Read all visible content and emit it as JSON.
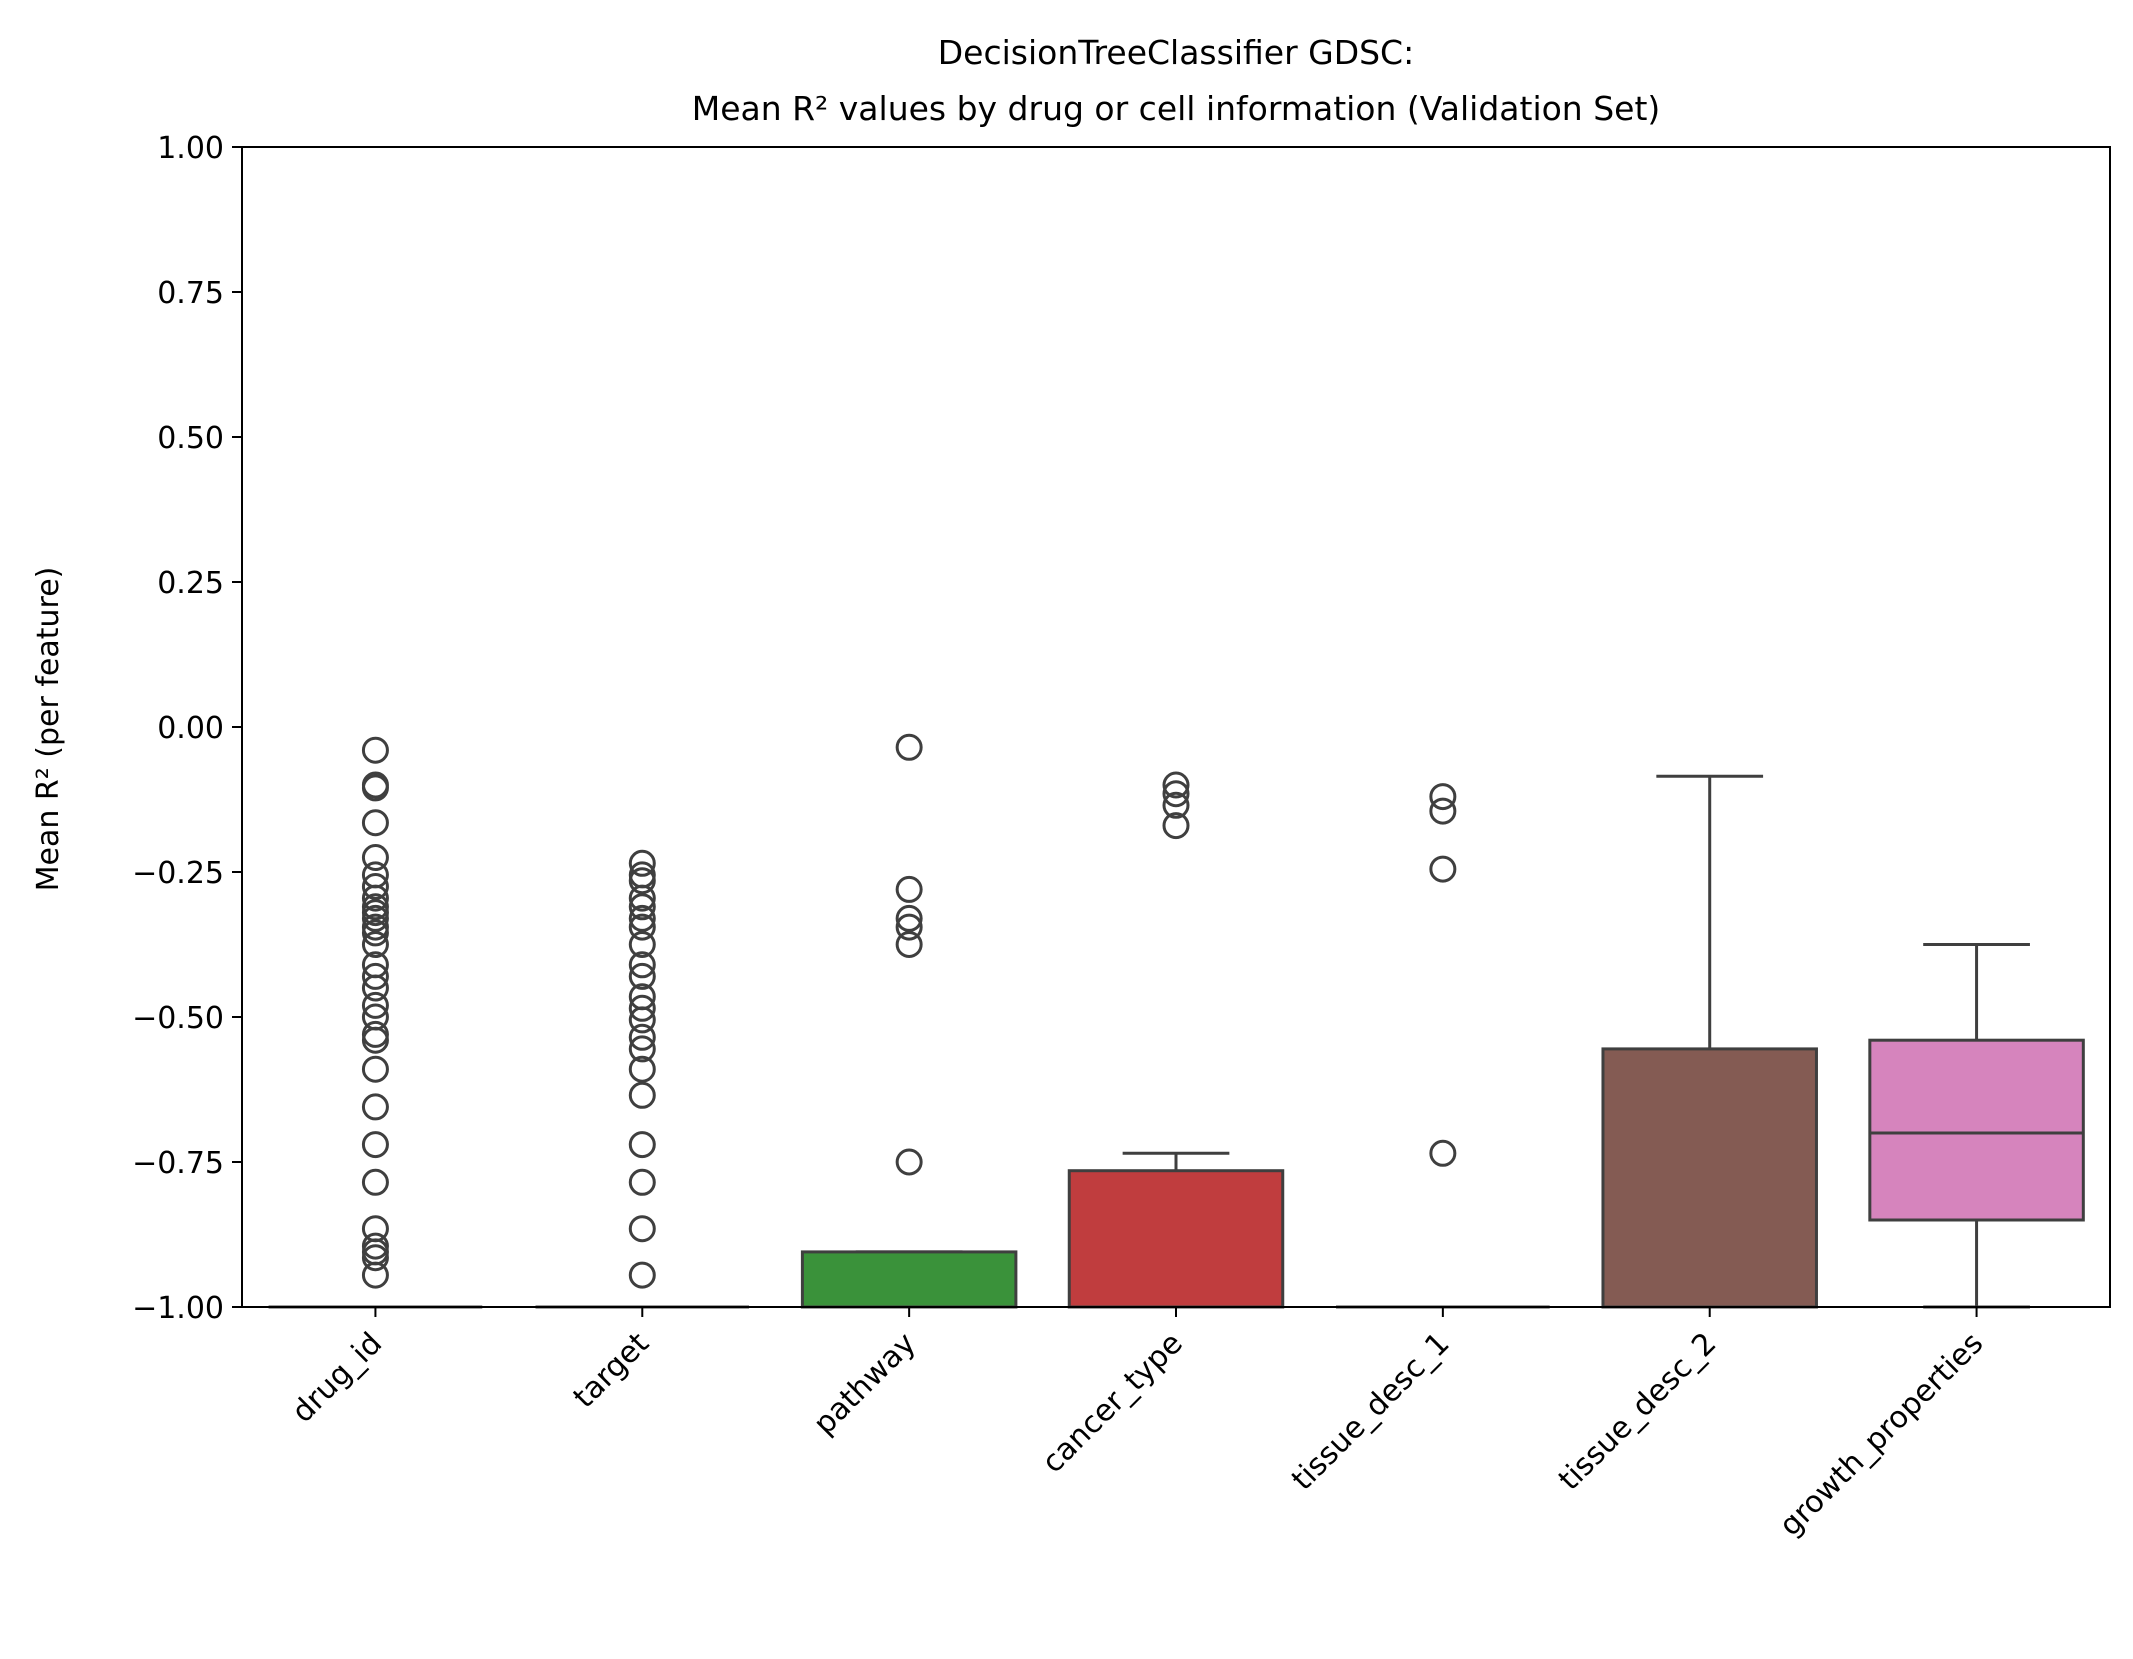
{
  "chart_data": {
    "type": "box",
    "title_line1": "DecisionTreeClassifier GDSC:",
    "title_line2": "Mean R² values by drug or cell information (Validation Set)",
    "xlabel": "",
    "ylabel": "Mean R² (per feature)",
    "ylim": [
      -1.0,
      1.0
    ],
    "yticks": [
      1.0,
      0.75,
      0.5,
      0.25,
      0.0,
      -0.25,
      -0.5,
      -0.75,
      -1.0
    ],
    "ytick_labels": [
      "1.00",
      "0.75",
      "0.50",
      "0.25",
      "0.00",
      "−0.25",
      "−0.50",
      "−0.75",
      "−1.00"
    ],
    "grid": false,
    "categories": [
      "drug_id",
      "target",
      "pathway",
      "cancer_type",
      "tissue_desc_1",
      "tissue_desc_2",
      "growth_properties"
    ],
    "boxes": [
      {
        "category": "drug_id",
        "color": "#1f77b4",
        "whisker_low": -1.0,
        "q1": -1.0,
        "median": -1.0,
        "q3": -1.0,
        "whisker_high": -1.0,
        "outliers": [
          -0.04,
          -0.1,
          -0.105,
          -0.165,
          -0.225,
          -0.255,
          -0.275,
          -0.295,
          -0.31,
          -0.32,
          -0.33,
          -0.345,
          -0.355,
          -0.375,
          -0.41,
          -0.43,
          -0.45,
          -0.48,
          -0.5,
          -0.53,
          -0.54,
          -0.59,
          -0.655,
          -0.72,
          -0.785,
          -0.865,
          -0.895,
          -0.905,
          -0.915,
          -0.945
        ]
      },
      {
        "category": "target",
        "color": "#ff7f0e",
        "whisker_low": -1.0,
        "q1": -1.0,
        "median": -1.0,
        "q3": -1.0,
        "whisker_high": -1.0,
        "outliers": [
          -0.235,
          -0.255,
          -0.265,
          -0.295,
          -0.31,
          -0.33,
          -0.345,
          -0.375,
          -0.41,
          -0.43,
          -0.465,
          -0.485,
          -0.505,
          -0.535,
          -0.555,
          -0.59,
          -0.635,
          -0.72,
          -0.785,
          -0.865,
          -0.945
        ]
      },
      {
        "category": "pathway",
        "color": "#3a923a",
        "whisker_low": -1.0,
        "q1": -1.0,
        "median": -1.0,
        "q3": -0.905,
        "whisker_high": -0.905,
        "outliers": [
          -0.035,
          -0.28,
          -0.33,
          -0.345,
          -0.375,
          -0.75
        ]
      },
      {
        "category": "cancer_type",
        "color": "#c03d3e",
        "whisker_low": -1.0,
        "q1": -1.0,
        "median": -1.0,
        "q3": -0.765,
        "whisker_high": -0.735,
        "outliers": [
          -0.1,
          -0.115,
          -0.135,
          -0.17
        ]
      },
      {
        "category": "tissue_desc_1",
        "color": "#9467bd",
        "whisker_low": -1.0,
        "q1": -1.0,
        "median": -1.0,
        "q3": -1.0,
        "whisker_high": -1.0,
        "outliers": [
          -0.12,
          -0.145,
          -0.245,
          -0.735
        ]
      },
      {
        "category": "tissue_desc_2",
        "color": "#845b53",
        "whisker_low": -1.0,
        "q1": -1.0,
        "median": -1.0,
        "q3": -0.555,
        "whisker_high": -0.085,
        "outliers": []
      },
      {
        "category": "growth_properties",
        "color": "#d684bd",
        "whisker_low": -1.0,
        "q1": -0.85,
        "median": -0.7,
        "q3": -0.54,
        "whisker_high": -0.375,
        "outliers": []
      }
    ]
  }
}
